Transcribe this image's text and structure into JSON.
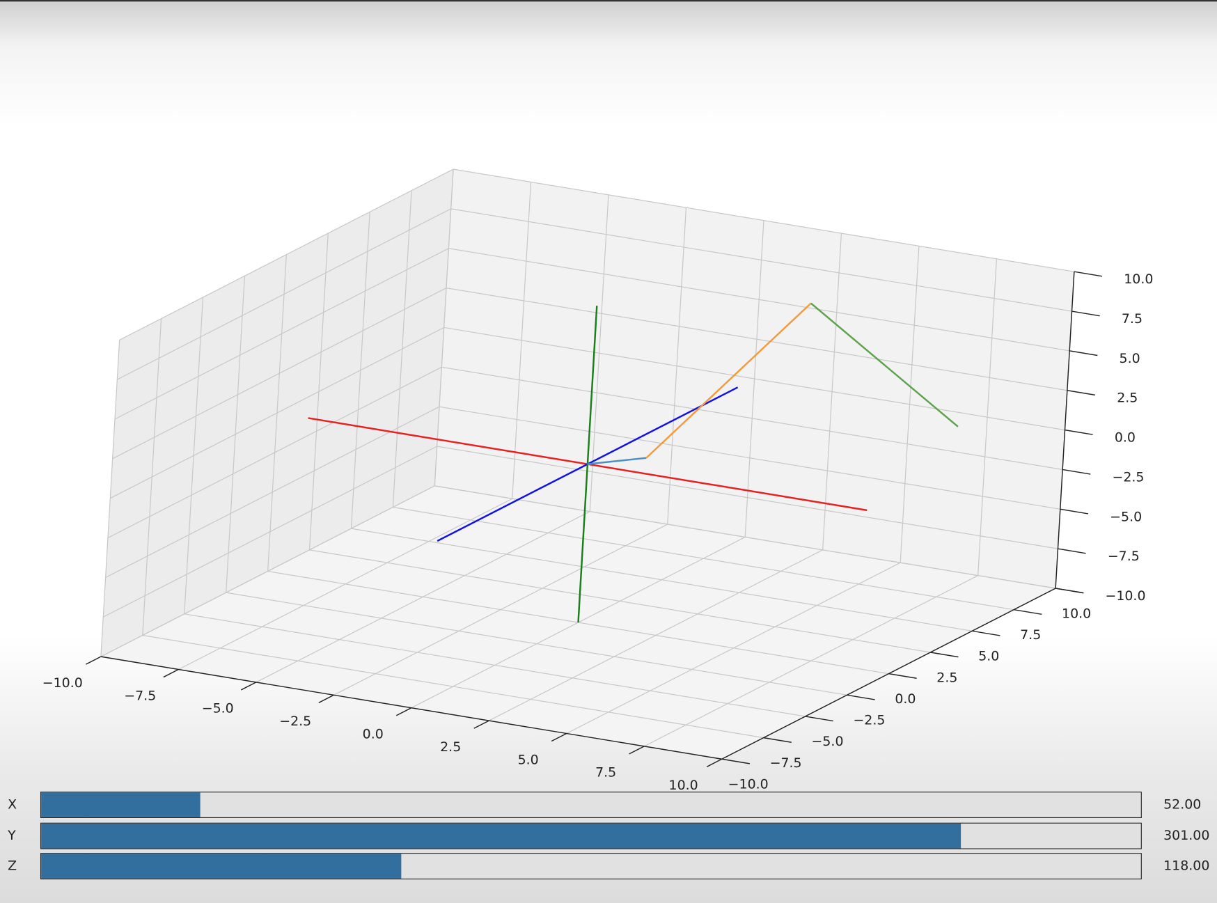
{
  "chart_data": {
    "type": "line3d",
    "xlim": [
      -10,
      10
    ],
    "ylim": [
      -10,
      10
    ],
    "zlim": [
      -10,
      10
    ],
    "grid": true,
    "xticks": [
      "−10.0",
      "−7.5",
      "−5.0",
      "−2.5",
      "0.0",
      "2.5",
      "5.0",
      "7.5",
      "10.0"
    ],
    "yticks": [
      "−10.0",
      "−7.5",
      "−5.0",
      "−2.5",
      "0.0",
      "2.5",
      "5.0",
      "7.5",
      "10.0"
    ],
    "zticks": [
      "−10.0",
      "−7.5",
      "−5.0",
      "−2.5",
      "0.0",
      "2.5",
      "5.0",
      "7.5",
      "10.0"
    ],
    "tick_values": [
      -10,
      -7.5,
      -5,
      -2.5,
      0,
      2.5,
      5,
      7.5,
      10
    ],
    "series": [
      {
        "color": "#e82020",
        "points": [
          [
            -9,
            0,
            0
          ],
          [
            9,
            0,
            0
          ]
        ]
      },
      {
        "color": "#1010e8",
        "points": [
          [
            0,
            -9,
            0
          ],
          [
            0,
            9,
            0
          ]
        ]
      },
      {
        "color": "#1a7f1a",
        "points": [
          [
            0,
            0,
            -10
          ],
          [
            0,
            0,
            10
          ]
        ]
      },
      {
        "color": "#4f8fbf",
        "points": [
          [
            0,
            0,
            0
          ],
          [
            1.5,
            0.7,
            0.5
          ]
        ]
      },
      {
        "color": "#f59a3a",
        "points": [
          [
            1.5,
            0.7,
            0.5
          ],
          [
            2.9,
            7.6,
            7
          ]
        ]
      },
      {
        "color": "#5aa34a",
        "points": [
          [
            2.9,
            7.6,
            7
          ],
          [
            8.7,
            5.9,
            2
          ]
        ]
      }
    ]
  },
  "sliders": [
    {
      "label": "X",
      "value": 52,
      "value_text": "52.00",
      "min": 0,
      "max": 360
    },
    {
      "label": "Y",
      "value": 301,
      "value_text": "301.00",
      "min": 0,
      "max": 360
    },
    {
      "label": "Z",
      "value": 118,
      "value_text": "118.00",
      "min": 0,
      "max": 360
    }
  ],
  "colors": {
    "slider_fill": "#336f9e",
    "pane": "#f2f2f2",
    "grid": "#c8c8c8"
  }
}
